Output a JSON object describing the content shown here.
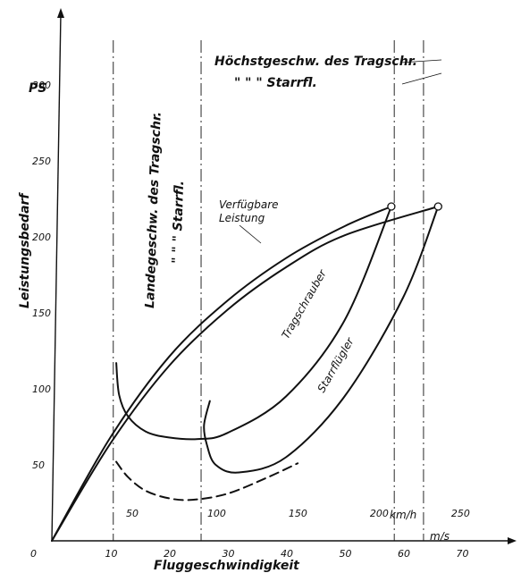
{
  "chart_data": {
    "type": "line",
    "xlabel": "Fluggeschwindigkeit",
    "ylabel": "Leistungsbedarf",
    "y_unit": "PS",
    "xlim": [
      0,
      80
    ],
    "ylim": [
      0,
      300
    ],
    "x_ticks": [
      "0",
      "10",
      "20",
      "30",
      "40",
      "50",
      "60",
      "70"
    ],
    "x_unit_ms": "m/s",
    "kmh_ticks": [
      "50",
      "100",
      "150",
      "200",
      "250"
    ],
    "x_unit_kmh": "km/h",
    "y_ticks": [
      "50",
      "100",
      "150",
      "200",
      "250",
      "300"
    ],
    "grid": false,
    "series": [
      {
        "name": "Verfügbare Leistung",
        "label": [
          "Verfügbare",
          "Leistung"
        ],
        "style": "solid",
        "x": [
          0,
          10,
          20,
          30,
          40,
          50,
          58
        ],
        "y": [
          0,
          68,
          121,
          158,
          186,
          207,
          220
        ]
      },
      {
        "name": "Tragschrauber",
        "style": "solid",
        "x": [
          0,
          10,
          20,
          30,
          40,
          50,
          66
        ],
        "y": [
          0,
          64,
          115,
          152,
          180,
          201,
          220
        ]
      },
      {
        "name": "",
        "style": "solid",
        "x": [
          11,
          11.5,
          13,
          16,
          20,
          25,
          30,
          40,
          50,
          58
        ],
        "y": [
          117,
          96,
          82,
          72,
          68,
          67,
          71,
          95,
          145,
          220
        ]
      },
      {
        "name": "Starrflügler",
        "style": "solid",
        "x": [
          27,
          26,
          26.5,
          28,
          32,
          40,
          50,
          60,
          66
        ],
        "y": [
          92,
          76,
          63,
          50,
          45,
          55,
          95,
          160,
          220
        ]
      },
      {
        "name": "",
        "style": "dashed",
        "x": [
          11,
          13,
          16,
          20,
          24,
          30,
          37,
          42
        ],
        "y": [
          52,
          42,
          33,
          28,
          27,
          31,
          42,
          51
        ]
      }
    ],
    "end_markers": [
      {
        "x": 58,
        "y": 220
      },
      {
        "x": 66,
        "y": 220
      }
    ],
    "vlines": [
      {
        "x": 10.5,
        "style": "dash-dot"
      },
      {
        "x": 25.5,
        "style": "dash-dot"
      },
      {
        "x": 58.5,
        "style": "dash-dot"
      },
      {
        "x": 63.5,
        "style": "dash-dot"
      }
    ],
    "annotations": {
      "landing": [
        "Landegeschw. des Tragschr.",
        "\"    \"    \" Starrfl."
      ],
      "max_speed": [
        "Höchstgeschw. des Tragschr.",
        "\"      \"      \"  Starrfl."
      ],
      "tragschrauber": "Tragschrauber",
      "starrfluegler": "Starrflügler"
    }
  }
}
